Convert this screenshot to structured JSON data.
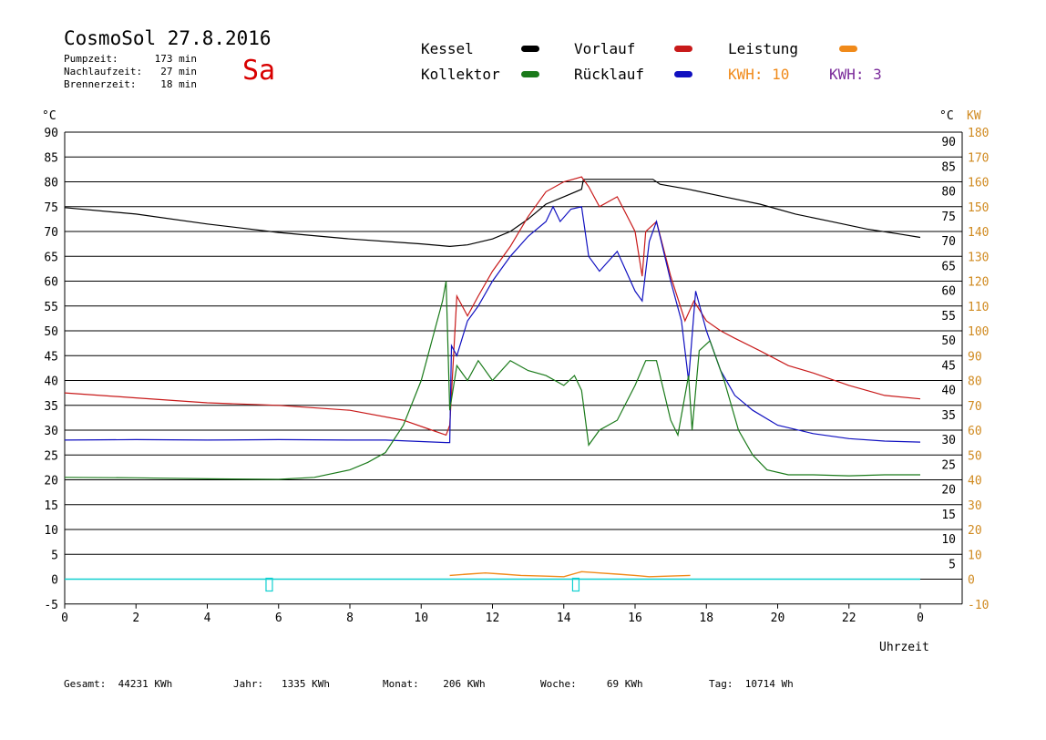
{
  "header": {
    "title": "CosmoSol 27.8.2016",
    "day": "Sa",
    "stats": [
      {
        "label": "Pumpzeit:",
        "value": "173 min"
      },
      {
        "label": "Nachlaufzeit:",
        "value": "27 min"
      },
      {
        "label": "Brennerzeit:",
        "value": "18 min"
      }
    ]
  },
  "legend": {
    "kessel": "Kessel",
    "kollektor": "Kollektor",
    "vorlauf": "Vorlauf",
    "ruecklauf": "Rücklauf",
    "leistung": "Leistung",
    "kwh1_label": "KWH:",
    "kwh1_value": "10",
    "kwh2_label": "KWH:",
    "kwh2_value": "3"
  },
  "colors": {
    "kessel": "#000000",
    "kollektor": "#1a7a1a",
    "vorlauf": "#c81a1a",
    "ruecklauf": "#1010c0",
    "leistung": "#f08a1a",
    "kwh2": "#7a2a9a",
    "day": "#d80000",
    "axis_right_kw": "#d08a20",
    "pump": "#10d0d0"
  },
  "footer": {
    "gesamt_label": "Gesamt:",
    "gesamt_value": "44231 KWh",
    "jahr_label": "Jahr:",
    "jahr_value": "1335 KWh",
    "monat_label": "Monat:",
    "monat_value": "206 KWh",
    "woche_label": "Woche:",
    "woche_value": "69 KWh",
    "tag_label": "Tag:",
    "tag_value": "10714 Wh"
  },
  "chart_data": {
    "type": "line",
    "title": "CosmoSol 27.8.2016",
    "xlabel": "Uhrzeit",
    "ylabel_left": "°C",
    "ylabel_right_1": "°C",
    "ylabel_right_2": "KW",
    "xlim": [
      0,
      24
    ],
    "ylim": [
      -5,
      90
    ],
    "ylim_kw": [
      -10,
      180
    ],
    "x_ticks": [
      "0",
      "2",
      "4",
      "6",
      "8",
      "10",
      "12",
      "14",
      "16",
      "18",
      "20",
      "22",
      "0"
    ],
    "y_ticks_left": [
      "90",
      "85",
      "80",
      "75",
      "70",
      "65",
      "60",
      "55",
      "50",
      "45",
      "40",
      "35",
      "30",
      "25",
      "20",
      "15",
      "10",
      "5",
      "0",
      "-5"
    ],
    "y_ticks_right": [
      "90",
      "85",
      "80",
      "75",
      "70",
      "65",
      "60",
      "55",
      "50",
      "45",
      "40",
      "35",
      "30",
      "25",
      "20",
      "15",
      "10",
      "5"
    ],
    "y_ticks_kw": [
      "180",
      "170",
      "160",
      "150",
      "140",
      "130",
      "120",
      "110",
      "100",
      "90",
      "80",
      "70",
      "60",
      "50",
      "40",
      "30",
      "20",
      "10",
      "0",
      "-10"
    ],
    "grid": "horizontal",
    "series": [
      {
        "name": "Kessel",
        "color": "#000000",
        "points": [
          [
            0,
            74.8
          ],
          [
            2,
            73.5
          ],
          [
            4,
            71.5
          ],
          [
            6,
            69.8
          ],
          [
            8,
            68.5
          ],
          [
            10,
            67.5
          ],
          [
            10.8,
            67
          ],
          [
            11.3,
            67.3
          ],
          [
            12,
            68.5
          ],
          [
            12.5,
            70
          ],
          [
            13,
            72.5
          ],
          [
            13.5,
            75.5
          ],
          [
            14,
            77
          ],
          [
            14.5,
            78.5
          ],
          [
            14.55,
            80.5
          ],
          [
            16.5,
            80.5
          ],
          [
            16.7,
            79.5
          ],
          [
            17.5,
            78.5
          ],
          [
            18.5,
            77
          ],
          [
            19.5,
            75.5
          ],
          [
            20.5,
            73.5
          ],
          [
            21.5,
            72
          ],
          [
            22.5,
            70.5
          ],
          [
            23.4,
            69.5
          ],
          [
            24,
            68.8
          ]
        ]
      },
      {
        "name": "Vorlauf",
        "color": "#c81a1a",
        "points": [
          [
            0,
            37.5
          ],
          [
            2,
            36.5
          ],
          [
            4,
            35.5
          ],
          [
            6,
            35
          ],
          [
            8,
            34
          ],
          [
            9.5,
            32
          ],
          [
            10.3,
            30
          ],
          [
            10.7,
            29
          ],
          [
            10.8,
            31
          ],
          [
            11,
            57
          ],
          [
            11.3,
            53
          ],
          [
            11.6,
            57
          ],
          [
            12,
            62
          ],
          [
            12.5,
            67
          ],
          [
            13,
            73
          ],
          [
            13.5,
            78
          ],
          [
            14,
            80
          ],
          [
            14.5,
            81
          ],
          [
            14.7,
            79
          ],
          [
            15,
            75
          ],
          [
            15.5,
            77
          ],
          [
            16,
            70
          ],
          [
            16.2,
            61
          ],
          [
            16.3,
            70
          ],
          [
            16.6,
            72
          ],
          [
            17,
            61
          ],
          [
            17.4,
            52
          ],
          [
            17.65,
            56
          ],
          [
            18,
            52
          ],
          [
            18.4,
            50
          ],
          [
            18.8,
            48.5
          ],
          [
            19.5,
            46
          ],
          [
            20.3,
            43
          ],
          [
            21,
            41.5
          ],
          [
            22,
            39
          ],
          [
            23,
            37
          ],
          [
            24,
            36.3
          ]
        ]
      },
      {
        "name": "Rücklauf",
        "color": "#1010c0",
        "points": [
          [
            0,
            28
          ],
          [
            2,
            28.1
          ],
          [
            4,
            28
          ],
          [
            6,
            28.1
          ],
          [
            8,
            28
          ],
          [
            9,
            28
          ],
          [
            10.7,
            27.5
          ],
          [
            10.8,
            27.5
          ],
          [
            10.85,
            47
          ],
          [
            11,
            45
          ],
          [
            11.3,
            52
          ],
          [
            11.6,
            55
          ],
          [
            12,
            60
          ],
          [
            12.5,
            65
          ],
          [
            13,
            69
          ],
          [
            13.5,
            72
          ],
          [
            13.7,
            75
          ],
          [
            13.9,
            72
          ],
          [
            14.2,
            74.5
          ],
          [
            14.5,
            75
          ],
          [
            14.7,
            65
          ],
          [
            15,
            62
          ],
          [
            15.5,
            66
          ],
          [
            16,
            58
          ],
          [
            16.2,
            56
          ],
          [
            16.4,
            68
          ],
          [
            16.6,
            72
          ],
          [
            17,
            60
          ],
          [
            17.3,
            52
          ],
          [
            17.5,
            40
          ],
          [
            17.7,
            58
          ],
          [
            18,
            50
          ],
          [
            18.4,
            42
          ],
          [
            18.8,
            37
          ],
          [
            19.3,
            34
          ],
          [
            20,
            31
          ],
          [
            21,
            29.3
          ],
          [
            22,
            28.3
          ],
          [
            23,
            27.8
          ],
          [
            24,
            27.6
          ]
        ]
      },
      {
        "name": "Kollektor",
        "color": "#1a7a1a",
        "points": [
          [
            0,
            20.5
          ],
          [
            2,
            20.4
          ],
          [
            4,
            20.2
          ],
          [
            6,
            20.1
          ],
          [
            7,
            20.5
          ],
          [
            8,
            22
          ],
          [
            8.5,
            23.5
          ],
          [
            9,
            25.5
          ],
          [
            9.5,
            31
          ],
          [
            10,
            40
          ],
          [
            10.3,
            48
          ],
          [
            10.6,
            56
          ],
          [
            10.7,
            60
          ],
          [
            10.8,
            34
          ],
          [
            11,
            43
          ],
          [
            11.3,
            40
          ],
          [
            11.6,
            44
          ],
          [
            12,
            40
          ],
          [
            12.5,
            44
          ],
          [
            13,
            42
          ],
          [
            13.5,
            41
          ],
          [
            14,
            39
          ],
          [
            14.3,
            41
          ],
          [
            14.5,
            38
          ],
          [
            14.7,
            27
          ],
          [
            15,
            30
          ],
          [
            15.5,
            32
          ],
          [
            16,
            39
          ],
          [
            16.3,
            44
          ],
          [
            16.6,
            44
          ],
          [
            17,
            32
          ],
          [
            17.2,
            29
          ],
          [
            17.5,
            41
          ],
          [
            17.6,
            30
          ],
          [
            17.8,
            46
          ],
          [
            18.1,
            48
          ],
          [
            18.5,
            40
          ],
          [
            18.9,
            30
          ],
          [
            19.3,
            25
          ],
          [
            19.7,
            22
          ],
          [
            20.3,
            21
          ],
          [
            21,
            21
          ],
          [
            22,
            20.8
          ],
          [
            23,
            21
          ],
          [
            24,
            21
          ]
        ]
      }
    ],
    "power_series": [
      {
        "name": "Leistung",
        "color": "#f08a1a",
        "points": [
          [
            10.8,
            1.5
          ],
          [
            11.3,
            2
          ],
          [
            11.8,
            2.5
          ],
          [
            12.3,
            2
          ],
          [
            12.8,
            1.5
          ],
          [
            13.5,
            1.2
          ],
          [
            14,
            1
          ],
          [
            14.5,
            3
          ],
          [
            15,
            2.5
          ],
          [
            15.5,
            2
          ],
          [
            16,
            1.5
          ],
          [
            16.4,
            1
          ],
          [
            17.55,
            1.5
          ]
        ]
      }
    ],
    "pump_marks_hours": [
      5.75,
      14.35
    ]
  }
}
